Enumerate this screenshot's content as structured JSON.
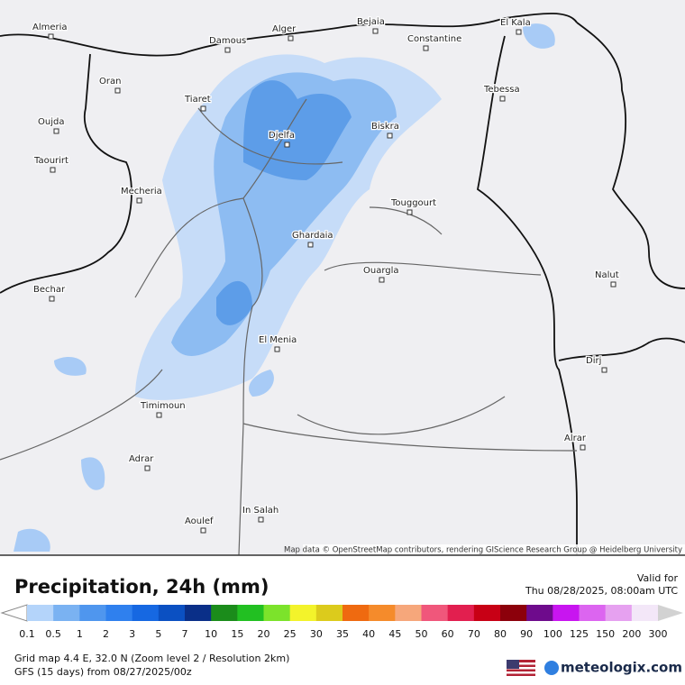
{
  "map": {
    "cities": [
      "Almeria",
      "Damous",
      "Alger",
      "Bejaia",
      "Constantine",
      "El Kala",
      "Oran",
      "Tiaret",
      "Oujda",
      "Taourirt",
      "Djelfa",
      "Biskra",
      "Tebessa",
      "Mecheria",
      "Touggourt",
      "Ghardaia",
      "Bechar",
      "Ouargla",
      "El Menia",
      "Timimoun",
      "Adrar",
      "Aoulef",
      "In Salah",
      "Nalut",
      "Dirj",
      "Alrar"
    ],
    "attribution": "Map data © OpenStreetMap contributors, rendering GIScience Research Group @ Heidelberg University"
  },
  "legend": {
    "title": "Precipitation, 24h (mm)",
    "valid_label": "Valid for",
    "valid_time": "Thu 08/28/2025, 08:00am UTC",
    "labels": [
      0.1,
      0.5,
      1,
      2,
      3,
      5,
      7,
      10,
      15,
      20,
      25,
      30,
      35,
      40,
      45,
      50,
      60,
      70,
      80,
      90,
      100,
      125,
      150,
      200,
      300
    ],
    "colors": [
      "#b4d4fa",
      "#7ab2f2",
      "#4f96ee",
      "#2f80ee",
      "#1668e2",
      "#0b50c2",
      "#0a2f88",
      "#1b8c1b",
      "#22c022",
      "#7ce32b",
      "#f3f32b",
      "#dccb1c",
      "#ef6a10",
      "#f58b2b",
      "#f6a77b",
      "#f0577b",
      "#e21f4f",
      "#c80015",
      "#8c000b",
      "#6e0b8c",
      "#c815f0",
      "#dc65f0",
      "#e6a1f0",
      "#f3e7f8",
      "#d2d2d2"
    ]
  },
  "footer": {
    "grid": "Grid map 4.4 E, 32.0 N (Zoom level 2 / Resolution 2km)",
    "model": "GFS (15 days) from 08/27/2025/00z",
    "brand": "meteologix.com"
  }
}
